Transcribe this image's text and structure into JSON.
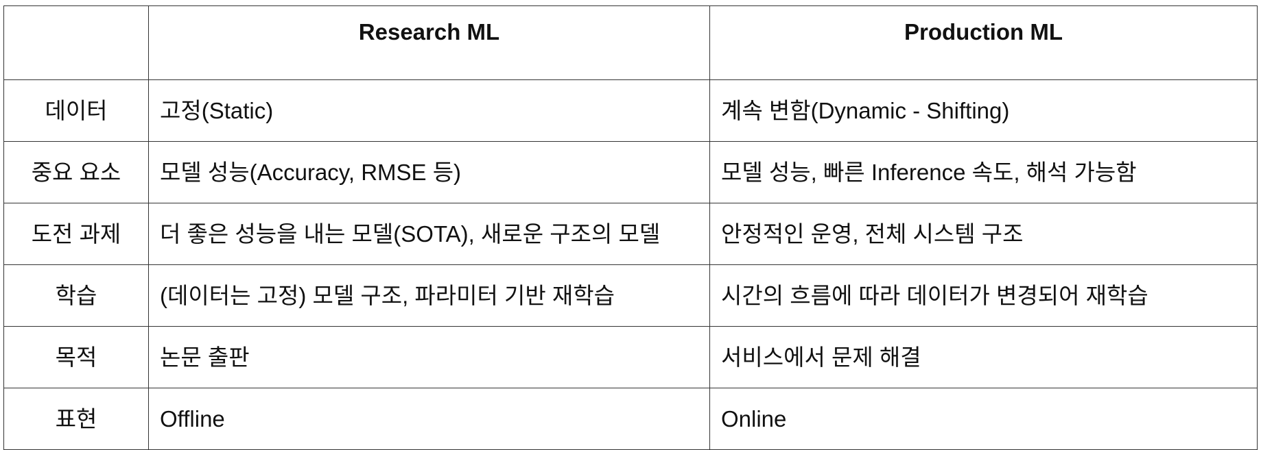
{
  "table": {
    "headers": [
      "",
      "Research ML",
      "Production ML"
    ],
    "rows": [
      {
        "label": "데이터",
        "research": "고정(Static)",
        "production": "계속 변함(Dynamic - Shifting)"
      },
      {
        "label": "중요 요소",
        "research": "모델 성능(Accuracy, RMSE 등)",
        "production": "모델 성능, 빠른 Inference 속도, 해석 가능함"
      },
      {
        "label": "도전 과제",
        "research": "더 좋은 성능을 내는 모델(SOTA), 새로운 구조의 모델",
        "production": "안정적인 운영, 전체 시스템 구조"
      },
      {
        "label": "학습",
        "research": "(데이터는 고정) 모델 구조, 파라미터 기반 재학습",
        "production": "시간의 흐름에 따라 데이터가 변경되어 재학습"
      },
      {
        "label": "목적",
        "research": "논문 출판",
        "production": "서비스에서 문제 해결"
      },
      {
        "label": "표현",
        "research": "Offline",
        "production": "Online"
      }
    ]
  }
}
